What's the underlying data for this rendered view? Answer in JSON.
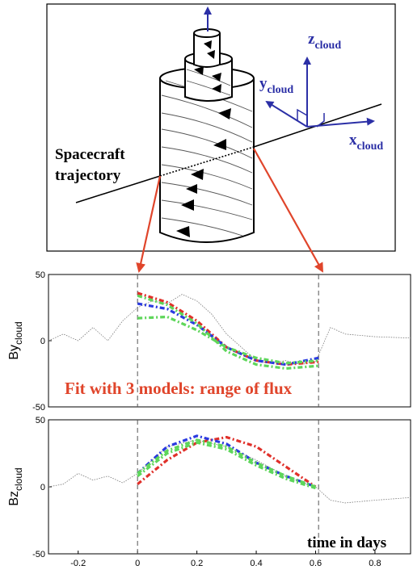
{
  "diagram": {
    "trajectory_label_line1": "Spacecraft",
    "trajectory_label_line2": "trajectory",
    "axis_x": "x",
    "axis_y": "y",
    "axis_z": "z",
    "axis_subscript": "cloud"
  },
  "colors": {
    "axis_blue": "#2b2fa6",
    "arrow_red": "#e0452b",
    "annotation_red": "#e0452b",
    "model_red": "#e0302a",
    "model_blue": "#2a3ae0",
    "model_green": "#5ed65a",
    "data_gray": "#777777"
  },
  "annotation": "Fit with 3 models: range of flux",
  "time_label": "time in days",
  "chart_data": [
    {
      "type": "line",
      "ylabel_main": "By",
      "ylabel_sub": "cloud",
      "ylim": [
        -50,
        50
      ],
      "xlim": [
        -0.3,
        0.92
      ],
      "yticks": [
        "50",
        "0",
        "-50"
      ],
      "xticks": [],
      "vlines": [
        0.0,
        0.61
      ],
      "series": [
        {
          "x": [
            0.0,
            0.1,
            0.2,
            0.3,
            0.4,
            0.5,
            0.61
          ],
          "y": [
            36,
            29,
            15,
            -5,
            -15,
            -18,
            -16
          ]
        },
        {
          "x": [
            0.0,
            0.1,
            0.2,
            0.3,
            0.4,
            0.5,
            0.61
          ],
          "y": [
            28,
            24,
            12,
            -5,
            -15,
            -18,
            -13
          ]
        },
        {
          "x": [
            0.0,
            0.1,
            0.2,
            0.3,
            0.4,
            0.5,
            0.61
          ],
          "y": [
            17,
            18,
            8,
            -5,
            -13,
            -17,
            -15
          ]
        },
        {
          "x": [
            0.0,
            0.1,
            0.2,
            0.3,
            0.4,
            0.5,
            0.61
          ],
          "y": [
            34,
            27,
            13,
            -8,
            -18,
            -21,
            -19
          ]
        }
      ],
      "observed": {
        "x": [
          -0.3,
          -0.25,
          -0.2,
          -0.15,
          -0.1,
          -0.05,
          0.0,
          0.05,
          0.1,
          0.15,
          0.2,
          0.25,
          0.3,
          0.35,
          0.4,
          0.45,
          0.5,
          0.55,
          0.6,
          0.65,
          0.7,
          0.8,
          0.92
        ],
        "y": [
          0,
          5,
          0,
          10,
          0,
          15,
          25,
          30,
          28,
          35,
          30,
          20,
          5,
          -5,
          -15,
          -17,
          -15,
          -18,
          -16,
          10,
          5,
          3,
          2
        ]
      }
    },
    {
      "type": "line",
      "ylabel_main": "Bz",
      "ylabel_sub": "cloud",
      "ylim": [
        -50,
        50
      ],
      "xlim": [
        -0.3,
        0.92
      ],
      "yticks": [
        "50",
        "0",
        "-50"
      ],
      "xticks": [
        "-0.2",
        "0",
        "0.2",
        "0.4",
        "0.6",
        "0.8"
      ],
      "xtick_values": [
        -0.2,
        0.0,
        0.2,
        0.4,
        0.6,
        0.8
      ],
      "vlines": [
        0.0,
        0.61
      ],
      "series": [
        {
          "x": [
            0.0,
            0.1,
            0.2,
            0.3,
            0.4,
            0.5,
            0.6
          ],
          "y": [
            2,
            20,
            33,
            37,
            30,
            15,
            0
          ]
        },
        {
          "x": [
            0.0,
            0.1,
            0.2,
            0.3,
            0.4,
            0.5,
            0.6
          ],
          "y": [
            10,
            30,
            38,
            32,
            18,
            8,
            0
          ]
        },
        {
          "x": [
            0.0,
            0.1,
            0.2,
            0.3,
            0.4,
            0.5,
            0.6
          ],
          "y": [
            10,
            27,
            35,
            30,
            18,
            8,
            0
          ]
        },
        {
          "x": [
            0.0,
            0.1,
            0.2,
            0.3,
            0.4,
            0.5,
            0.6
          ],
          "y": [
            8,
            25,
            33,
            28,
            16,
            6,
            -1
          ]
        }
      ],
      "observed": {
        "x": [
          -0.3,
          -0.25,
          -0.2,
          -0.15,
          -0.1,
          -0.05,
          0.0,
          0.05,
          0.1,
          0.2,
          0.3,
          0.4,
          0.5,
          0.6,
          0.65,
          0.7,
          0.8,
          0.92
        ],
        "y": [
          0,
          2,
          10,
          5,
          8,
          3,
          10,
          20,
          30,
          35,
          30,
          20,
          8,
          0,
          -10,
          -12,
          -10,
          -8
        ]
      }
    }
  ]
}
